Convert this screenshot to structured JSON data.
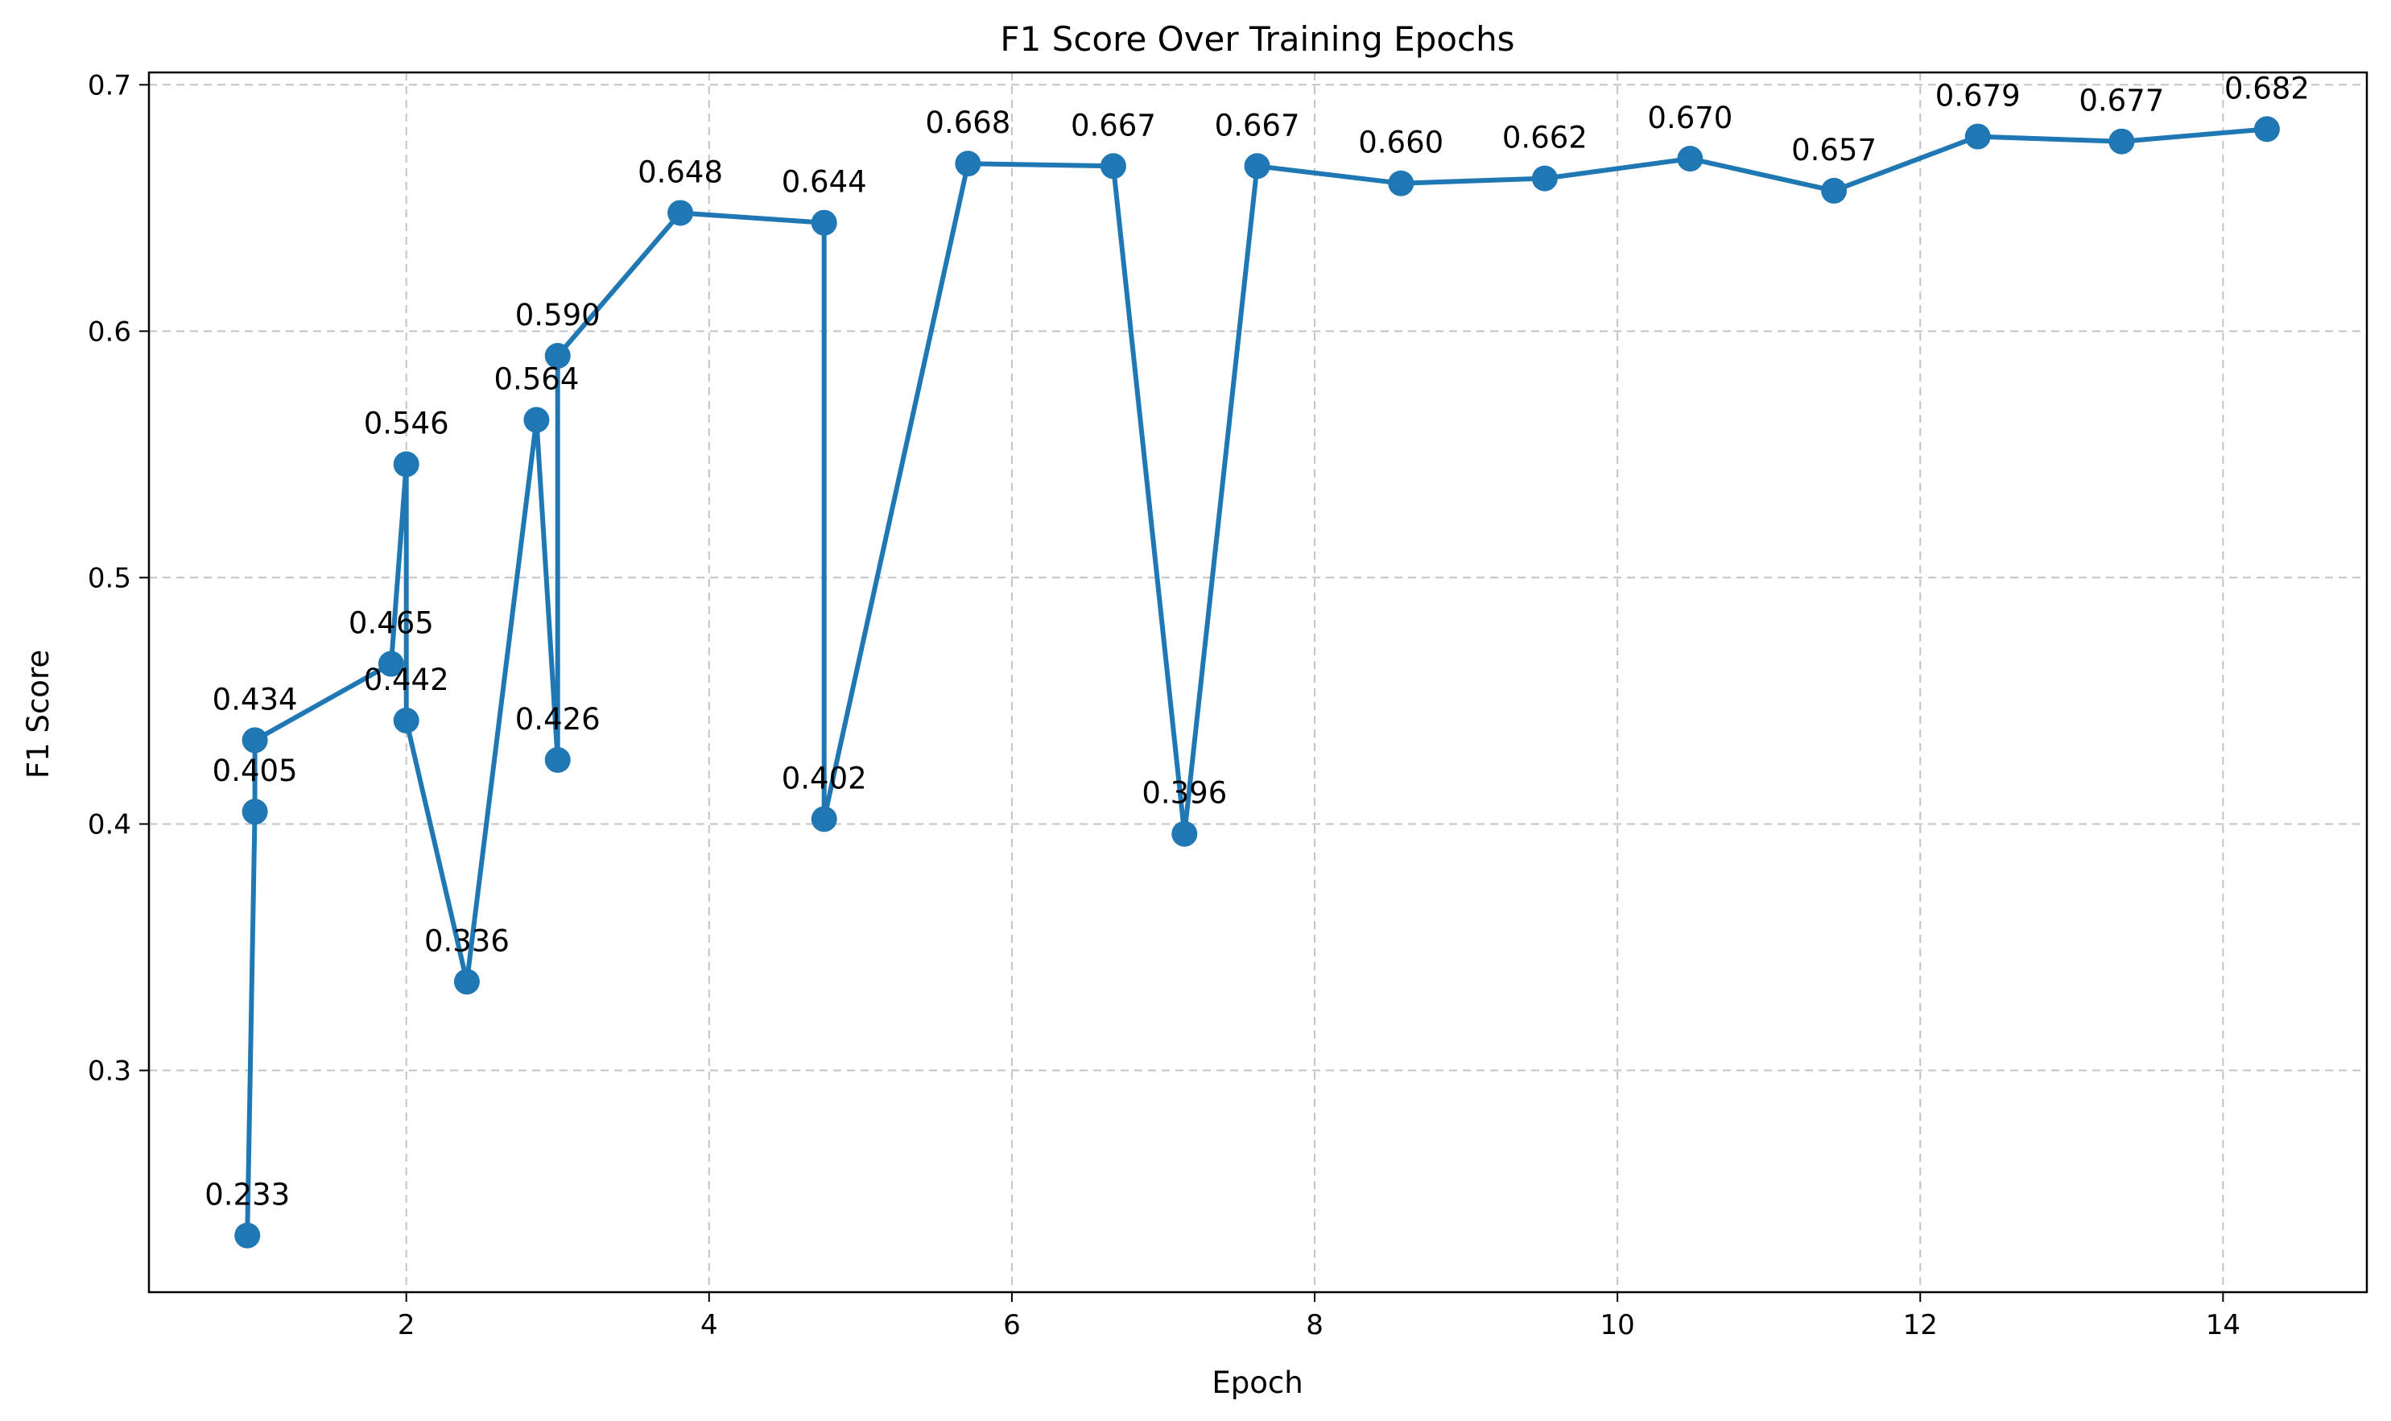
{
  "chart_data": {
    "type": "line",
    "title": "F1 Score Over Training Epochs",
    "xlabel": "Epoch",
    "ylabel": "F1 Score",
    "xlim": [
      0.3,
      14.95
    ],
    "ylim": [
      0.21,
      0.705
    ],
    "xticks": [
      2,
      4,
      6,
      8,
      10,
      12,
      14
    ],
    "yticks": [
      0.3,
      0.4,
      0.5,
      0.6,
      0.7
    ],
    "grid": true,
    "color": "#1f77b4",
    "series": [
      {
        "points": [
          {
            "x": 0.95,
            "y": 0.233,
            "label": "0.233"
          },
          {
            "x": 1.0,
            "y": 0.405,
            "label": "0.405"
          },
          {
            "x": 1.0,
            "y": 0.434,
            "label": "0.434"
          },
          {
            "x": 1.9,
            "y": 0.465,
            "label": "0.465"
          },
          {
            "x": 2.0,
            "y": 0.546,
            "label": "0.546"
          },
          {
            "x": 2.0,
            "y": 0.442,
            "label": "0.442"
          },
          {
            "x": 2.4,
            "y": 0.336,
            "label": "0.336"
          },
          {
            "x": 2.86,
            "y": 0.564,
            "label": "0.564"
          },
          {
            "x": 3.0,
            "y": 0.426,
            "label": "0.426"
          },
          {
            "x": 3.0,
            "y": 0.59,
            "label": "0.590"
          },
          {
            "x": 3.81,
            "y": 0.648,
            "label": "0.648"
          },
          {
            "x": 4.76,
            "y": 0.644,
            "label": "0.644"
          },
          {
            "x": 4.76,
            "y": 0.402,
            "label": "0.402"
          },
          {
            "x": 5.71,
            "y": 0.668,
            "label": "0.668"
          },
          {
            "x": 6.67,
            "y": 0.667,
            "label": "0.667"
          },
          {
            "x": 7.14,
            "y": 0.396,
            "label": "0.396"
          },
          {
            "x": 7.62,
            "y": 0.667,
            "label": "0.667"
          },
          {
            "x": 8.57,
            "y": 0.66,
            "label": "0.660"
          },
          {
            "x": 9.52,
            "y": 0.662,
            "label": "0.662"
          },
          {
            "x": 10.48,
            "y": 0.67,
            "label": "0.670"
          },
          {
            "x": 11.43,
            "y": 0.657,
            "label": "0.657"
          },
          {
            "x": 12.38,
            "y": 0.679,
            "label": "0.679"
          },
          {
            "x": 13.33,
            "y": 0.677,
            "label": "0.677"
          },
          {
            "x": 14.29,
            "y": 0.682,
            "label": "0.682"
          }
        ]
      }
    ]
  }
}
